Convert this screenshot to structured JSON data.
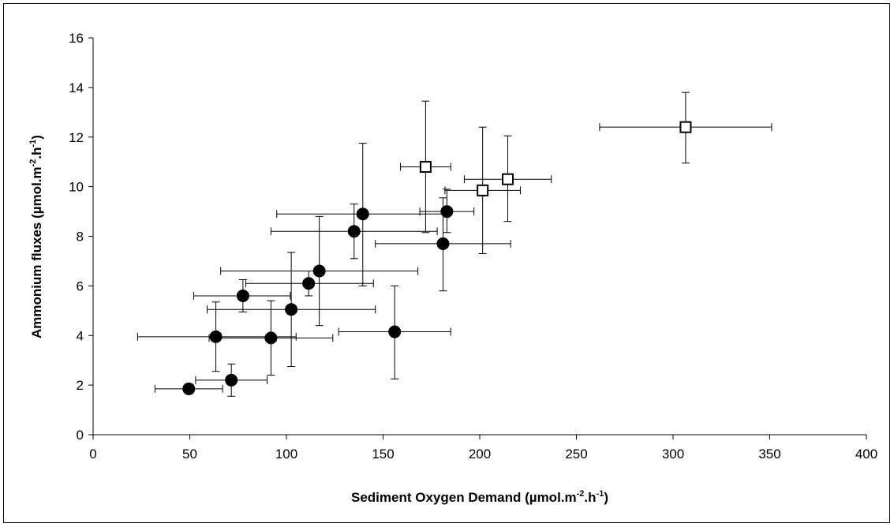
{
  "chart_data": {
    "type": "scatter",
    "title": "",
    "xlabel": "Sediment Oxygen Demand (µmol.m-2.h-1)",
    "ylabel": "Ammonium fluxes (µmol.m-2.h-1)",
    "xlabel_parts": {
      "base": "Sediment Oxygen Demand (µmol.m",
      "sup1": "-2",
      "mid": ".h",
      "sup2": "-1",
      "end": ")"
    },
    "ylabel_parts": {
      "base": "Ammonium fluxes (µmol.m",
      "sup1": "-2",
      "mid": ".h",
      "sup2": "-1",
      "end": ")"
    },
    "xlim": [
      0,
      400
    ],
    "ylim": [
      0,
      16
    ],
    "x_ticks": [
      "0",
      "50",
      "100",
      "150",
      "200",
      "250",
      "300",
      "350",
      "400"
    ],
    "y_ticks": [
      "0",
      "2",
      "4",
      "6",
      "8",
      "10",
      "12",
      "14",
      "16"
    ],
    "grid": false,
    "legend": "none",
    "series": [
      {
        "marker": "filled-circle",
        "color": "#000000",
        "points": [
          {
            "x": 49.5,
            "y": 1.85,
            "xerr": [
              32,
              67
            ],
            "yerr": [
              1.65,
              2.05
            ]
          },
          {
            "x": 71.5,
            "y": 2.2,
            "xerr": [
              53,
              90
            ],
            "yerr": [
              1.55,
              2.85
            ]
          },
          {
            "x": 63.5,
            "y": 3.95,
            "xerr": [
              23,
              105
            ],
            "yerr": [
              2.55,
              5.35
            ]
          },
          {
            "x": 92,
            "y": 3.9,
            "xerr": [
              60,
              124
            ],
            "yerr": [
              2.4,
              5.4
            ]
          },
          {
            "x": 77.5,
            "y": 5.6,
            "xerr": [
              52,
              102
            ],
            "yerr": [
              4.95,
              6.25
            ]
          },
          {
            "x": 102.5,
            "y": 5.05,
            "xerr": [
              59,
              146
            ],
            "yerr": [
              2.75,
              7.35
            ]
          },
          {
            "x": 111.5,
            "y": 6.1,
            "xerr": [
              79,
              145
            ],
            "yerr": [
              5.6,
              6.6
            ]
          },
          {
            "x": 117,
            "y": 6.6,
            "xerr": [
              66,
              168
            ],
            "yerr": [
              4.4,
              8.8
            ]
          },
          {
            "x": 135,
            "y": 8.2,
            "xerr": [
              92,
              178
            ],
            "yerr": [
              7.1,
              9.3
            ]
          },
          {
            "x": 139.5,
            "y": 8.9,
            "xerr": [
              95,
              184
            ],
            "yerr": [
              6,
              11.75
            ]
          },
          {
            "x": 156,
            "y": 4.15,
            "xerr": [
              127,
              185
            ],
            "yerr": [
              2.25,
              6
            ]
          },
          {
            "x": 181,
            "y": 7.7,
            "xerr": [
              146,
              216
            ],
            "yerr": [
              5.8,
              9.55
            ]
          },
          {
            "x": 183,
            "y": 9,
            "xerr": [
              169,
              197
            ],
            "yerr": [
              8.15,
              9.9
            ]
          }
        ]
      },
      {
        "marker": "open-square",
        "color": "#000000",
        "points": [
          {
            "x": 172,
            "y": 10.8,
            "xerr": [
              159,
              185
            ],
            "yerr": [
              8.15,
              13.45
            ]
          },
          {
            "x": 201.5,
            "y": 9.85,
            "xerr": [
              182,
              221
            ],
            "yerr": [
              7.3,
              12.4
            ]
          },
          {
            "x": 214.5,
            "y": 10.3,
            "xerr": [
              192,
              237
            ],
            "yerr": [
              8.6,
              12.05
            ]
          },
          {
            "x": 306.5,
            "y": 12.4,
            "xerr": [
              262,
              351
            ],
            "yerr": [
              10.95,
              13.8
            ]
          }
        ]
      }
    ]
  }
}
